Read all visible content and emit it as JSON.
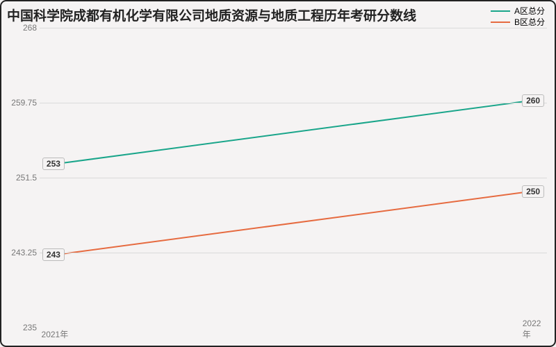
{
  "title": "中国科学院成都有机化学有限公司地质资源与地质工程历年考研分数线",
  "title_fontsize": 19,
  "background_color": "#f5f3f3",
  "border_color": "#222222",
  "chart": {
    "type": "line",
    "ylim": [
      235,
      268
    ],
    "yticks": [
      235,
      243.25,
      251.5,
      259.75,
      268
    ],
    "ytick_labels": [
      "235",
      "243.25",
      "251.5",
      "259.75",
      "268"
    ],
    "grid_color": "#dadada",
    "tick_fontsize": 12,
    "tick_color": "#777777",
    "x_categories": [
      "2021年",
      "2022年"
    ],
    "series": [
      {
        "name": "A区总分",
        "color": "#19a58a",
        "values": [
          253,
          260
        ],
        "line_width": 2
      },
      {
        "name": "B区总分",
        "color": "#e66a3f",
        "values": [
          243,
          250
        ],
        "line_width": 2
      }
    ],
    "label_bg": "#f5f3f3",
    "label_border": "#bbbbbb",
    "x_positions_pct": [
      3,
      97
    ]
  },
  "legend": {
    "fontsize": 12,
    "items": [
      {
        "label": "A区总分",
        "color": "#19a58a"
      },
      {
        "label": "B区总分",
        "color": "#e66a3f"
      }
    ]
  }
}
